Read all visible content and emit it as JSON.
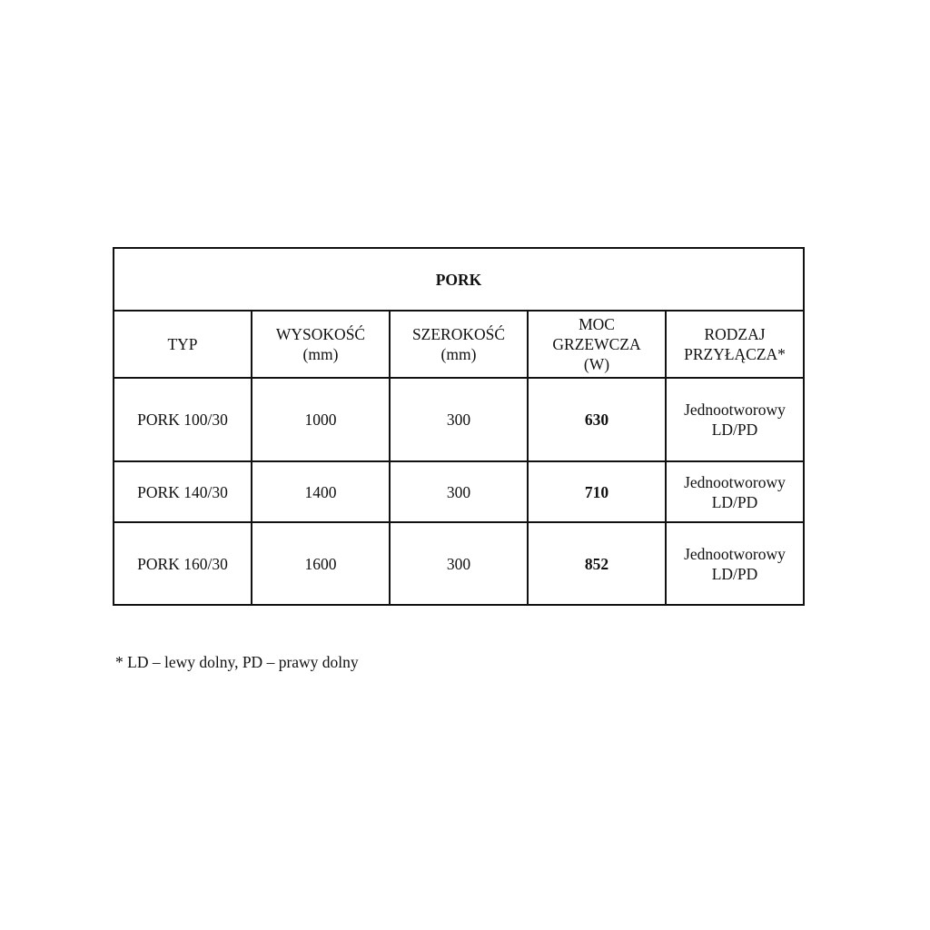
{
  "table": {
    "title": "PORK",
    "headers": [
      {
        "line1": "TYP",
        "line2": ""
      },
      {
        "line1": "WYSOKOŚĆ",
        "line2": "(mm)"
      },
      {
        "line1": "SZEROKOŚĆ",
        "line2": "(mm)"
      },
      {
        "line1": "MOC GRZEWCZA",
        "line2": "(W)"
      },
      {
        "line1": "RODZAJ PRZYŁĄCZA*",
        "line2": ""
      }
    ],
    "rows": [
      {
        "typ": "PORK 100/30",
        "wysokosc": "1000",
        "szerokosc": "300",
        "moc": "630",
        "rodzaj1": "Jednootworowy",
        "rodzaj2": "LD/PD"
      },
      {
        "typ": "PORK 140/30",
        "wysokosc": "1400",
        "szerokosc": "300",
        "moc": "710",
        "rodzaj1": "Jednootworowy",
        "rodzaj2": "LD/PD"
      },
      {
        "typ": "PORK 160/30",
        "wysokosc": "1600",
        "szerokosc": "300",
        "moc": "852",
        "rodzaj1": "Jednootworowy",
        "rodzaj2": "LD/PD"
      }
    ]
  },
  "footnote": "* LD – lewy dolny, PD – prawy dolny"
}
